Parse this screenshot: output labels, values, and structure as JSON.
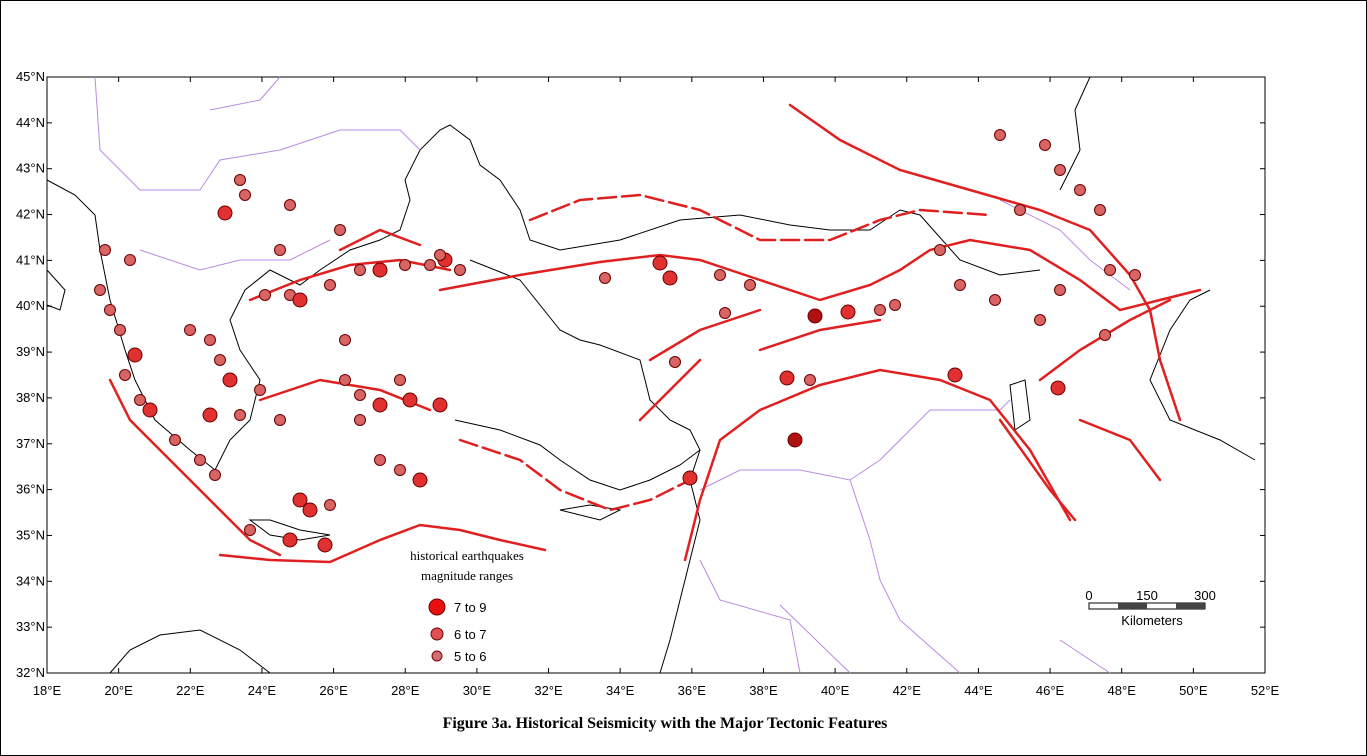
{
  "caption": "Figure 3a. Historical Seismicity with the Major Tectonic Features",
  "lat_labels": [
    "45°N",
    "44°N",
    "43°N",
    "42°N",
    "41°N",
    "40°N",
    "39°N",
    "38°N",
    "37°N",
    "36°N",
    "35°N",
    "34°N",
    "33°N",
    "32°N"
  ],
  "lon_labels": [
    "18°E",
    "20°E",
    "22°E",
    "24°E",
    "26°E",
    "28°E",
    "30°E",
    "32°E",
    "34°E",
    "36°E",
    "38°E",
    "40°E",
    "42°E",
    "44°E",
    "46°E",
    "48°E",
    "50°E",
    "52°E"
  ],
  "legend": {
    "title_lines": [
      "historical earthquakes",
      "magnitude ranges"
    ],
    "entries": [
      "7 to 9",
      "6 to 7",
      "5 to 6"
    ]
  },
  "scale_bar": {
    "ticks": [
      "0",
      "150",
      "300"
    ],
    "unit": "Kilometers"
  }
}
